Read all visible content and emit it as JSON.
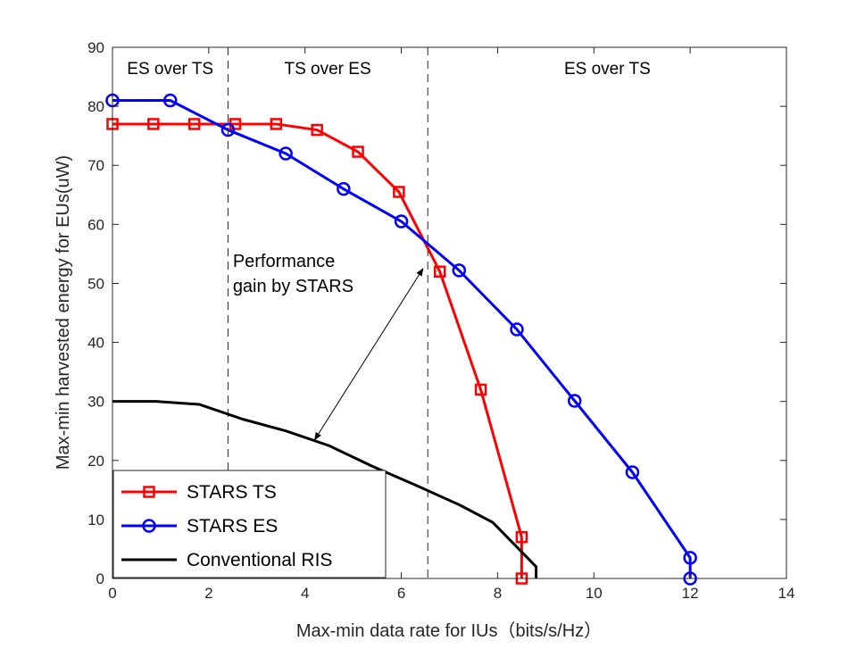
{
  "chart_data": {
    "type": "line",
    "title": "",
    "xlabel": "Max-min data rate for IUs（bits/s/Hz）",
    "ylabel": "Max-min harvested energy for EUs(uW)",
    "xlim": [
      0,
      14
    ],
    "ylim": [
      0,
      90
    ],
    "xticks": [
      0,
      2,
      4,
      6,
      8,
      10,
      12,
      14
    ],
    "yticks": [
      0,
      10,
      20,
      30,
      40,
      50,
      60,
      70,
      80,
      90
    ],
    "grid": false,
    "legend_position": "bottom-left",
    "series": [
      {
        "name": "STARS TS",
        "color": "#ff0000",
        "marker": "square",
        "x": [
          0,
          0.85,
          1.7,
          2.55,
          3.4,
          4.25,
          5.1,
          5.95,
          6.8,
          7.65,
          8.5,
          8.5
        ],
        "y": [
          77,
          77,
          77,
          77,
          77,
          76,
          72.3,
          65.5,
          52,
          32,
          7,
          0
        ]
      },
      {
        "name": "STARS ES",
        "color": "#0000ff",
        "marker": "circle",
        "x": [
          0,
          1.2,
          2.4,
          3.6,
          4.8,
          6.0,
          7.2,
          8.4,
          9.6,
          10.8,
          12.0,
          12.0
        ],
        "y": [
          81,
          81,
          76,
          72,
          66,
          60.5,
          52.2,
          42.2,
          30.1,
          18,
          3.5,
          0
        ]
      },
      {
        "name": "Conventional RIS",
        "color": "#000000",
        "marker": "none",
        "x": [
          0,
          0.9,
          1.8,
          2.7,
          3.6,
          4.5,
          5.4,
          6.3,
          7.2,
          7.9,
          8.8,
          8.8
        ],
        "y": [
          30,
          30,
          29.5,
          27,
          25,
          22.5,
          19,
          15.8,
          12.5,
          9.5,
          2,
          0
        ]
      }
    ],
    "vertical_lines": [
      2.4,
      6.55
    ],
    "regions": [
      {
        "label": "ES over TS",
        "x": 1.2
      },
      {
        "label": "TS over ES",
        "x": 4.47
      },
      {
        "label": "ES over TS",
        "x": 10.28
      }
    ],
    "annotation": {
      "lines": [
        "Performance",
        "gain by STARS"
      ],
      "text_x": 2.5,
      "text_y": 52.5,
      "arrow_from": [
        4.2,
        23.5
      ],
      "arrow_to": [
        6.45,
        52.5
      ]
    }
  }
}
